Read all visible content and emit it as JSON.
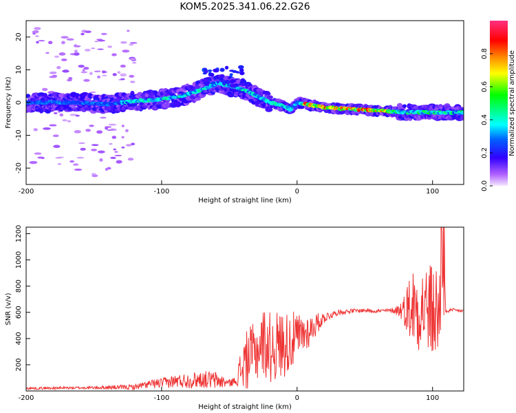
{
  "title": "KOM5.2025.341.06.22.G26",
  "colors": {
    "snr_line": "#ee3333",
    "axis": "#000000"
  },
  "chart_data": [
    {
      "type": "heatmap",
      "name": "spectrogram",
      "xlabel": "Height of straight line (km)",
      "ylabel": "Frequency (Hz)",
      "xlim": [
        -200,
        123
      ],
      "ylim": [
        -25,
        25
      ],
      "xticks": [
        "-200",
        "-100",
        "0",
        "100"
      ],
      "yticks": [
        "-20",
        "-10",
        "0",
        "10",
        "20"
      ],
      "ridge": {
        "x": [
          -200,
          -180,
          -160,
          -140,
          -120,
          -100,
          -85,
          -70,
          -58,
          -50,
          -40,
          -30,
          -20,
          -10,
          -5,
          0,
          20,
          40,
          60,
          80,
          100,
          123
        ],
        "y": [
          0,
          0,
          0,
          -0.5,
          0.5,
          1,
          2,
          4,
          6,
          5,
          4,
          2,
          0,
          -1,
          -2,
          0,
          -1.5,
          -2,
          -2.5,
          -3,
          -3,
          -3
        ]
      },
      "colorbar": {
        "label": "Normalized spectral amplitude",
        "range": [
          0,
          1
        ],
        "ticks": [
          "0.0",
          "0.2",
          "0.4",
          "0.6",
          "0.8"
        ]
      }
    },
    {
      "type": "line",
      "name": "snr",
      "xlabel": "Height of straight line (km)",
      "ylabel": "SNR (v/v)",
      "xlim": [
        -200,
        123
      ],
      "ylim": [
        0,
        1250
      ],
      "xticks": [
        "-200",
        "-100",
        "0",
        "100"
      ],
      "yticks": [
        "200",
        "400",
        "600",
        "800",
        "1000",
        "1200"
      ],
      "envelope": {
        "x": [
          -200,
          -150,
          -120,
          -110,
          -100,
          -90,
          -80,
          -70,
          -60,
          -50,
          -45,
          -40,
          -35,
          -30,
          -25,
          -20,
          -10,
          0,
          10,
          20,
          30,
          40,
          50,
          60,
          70,
          78,
          85,
          90,
          95,
          100,
          103,
          106,
          108,
          110,
          115,
          123
        ],
        "y": [
          20,
          25,
          30,
          50,
          60,
          75,
          80,
          90,
          80,
          60,
          80,
          200,
          260,
          300,
          380,
          330,
          360,
          400,
          470,
          560,
          600,
          610,
          615,
          610,
          615,
          620,
          650,
          640,
          640,
          600,
          600,
          600,
          650,
          610,
          615,
          610
        ]
      },
      "noise_amplitude": {
        "x": [
          -200,
          -160,
          -120,
          -100,
          -80,
          -60,
          -50,
          -45,
          -40,
          -30,
          -20,
          -10,
          0,
          10,
          20,
          30,
          50,
          70,
          78,
          85,
          95,
          100,
          105,
          108,
          110,
          123
        ],
        "y": [
          10,
          10,
          20,
          40,
          60,
          70,
          30,
          30,
          220,
          240,
          280,
          260,
          200,
          120,
          40,
          20,
          15,
          15,
          80,
          320,
          340,
          380,
          380,
          400,
          15,
          15
        ]
      }
    }
  ]
}
